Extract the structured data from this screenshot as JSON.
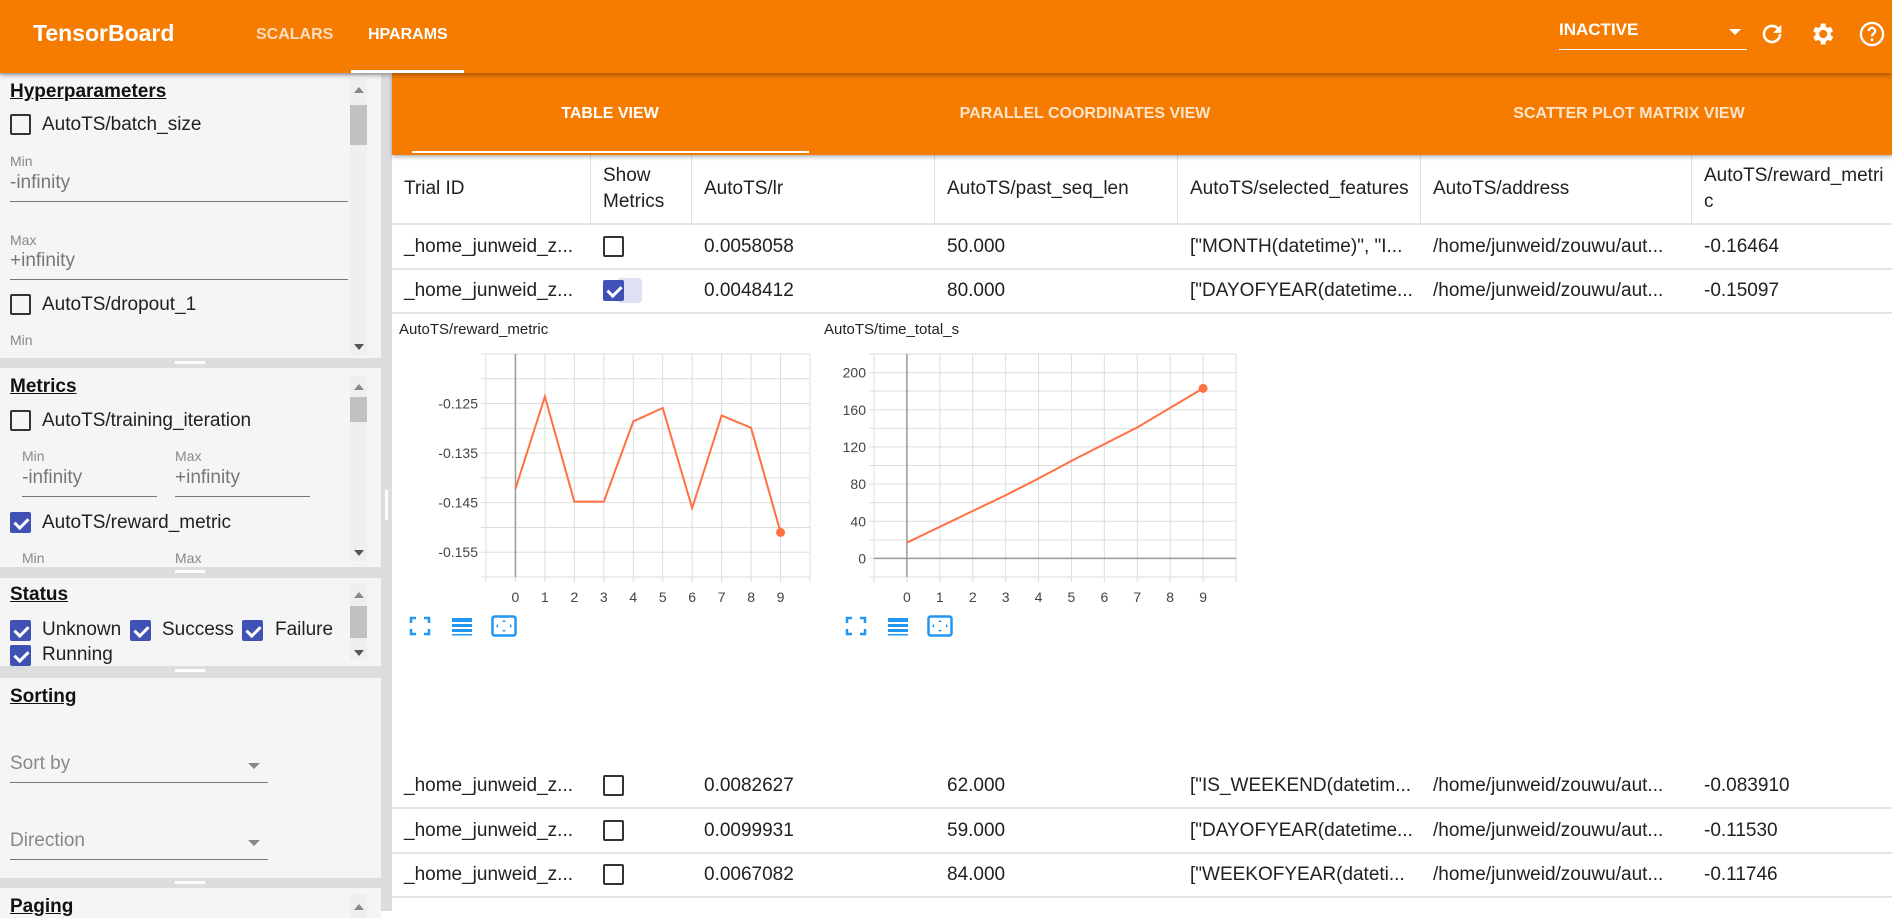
{
  "app": {
    "title": "TensorBoard",
    "nav": [
      "SCALARS",
      "HPARAMS"
    ],
    "active_nav": "HPARAMS"
  },
  "toolbar": {
    "run_select": "INACTIVE",
    "icons": [
      "refresh-icon",
      "gear-icon",
      "help-icon"
    ]
  },
  "accent_color": "#f57c00",
  "checkbox_color": "#3f51b5",
  "sidebar": {
    "hyperparameters": {
      "title": "Hyperparameters",
      "items": [
        {
          "label": "AutoTS/batch_size",
          "checked": false,
          "min_label": "Min",
          "min": "-infinity",
          "max_label": "Max",
          "max": "+infinity"
        },
        {
          "label": "AutoTS/dropout_1",
          "checked": false,
          "min_label": "Min"
        }
      ]
    },
    "metrics": {
      "title": "Metrics",
      "items": [
        {
          "label": "AutoTS/training_iteration",
          "checked": false,
          "min_label": "Min",
          "min": "-infinity",
          "max_label": "Max",
          "max": "+infinity"
        },
        {
          "label": "AutoTS/reward_metric",
          "checked": true,
          "min_label": "Min",
          "max_label": "Max"
        }
      ]
    },
    "status": {
      "title": "Status",
      "items": [
        {
          "label": "Unknown",
          "checked": true
        },
        {
          "label": "Success",
          "checked": true
        },
        {
          "label": "Failure",
          "checked": true
        },
        {
          "label": "Running",
          "checked": true
        }
      ]
    },
    "sorting": {
      "title": "Sorting",
      "sort_by": "Sort by",
      "direction": "Direction"
    },
    "paging": {
      "title": "Paging"
    }
  },
  "views": {
    "tabs": [
      "TABLE VIEW",
      "PARALLEL COORDINATES VIEW",
      "SCATTER PLOT MATRIX VIEW"
    ],
    "active": "TABLE VIEW"
  },
  "table": {
    "columns": [
      "Trial ID",
      "Show Metrics",
      "AutoTS/lr",
      "AutoTS/past_seq_len",
      "AutoTS/selected_features",
      "AutoTS/address",
      "AutoTS/reward_metric"
    ],
    "rows": [
      {
        "trial": "_home_junweid_z...",
        "show": false,
        "lr": "0.0058058",
        "past": "50.000",
        "features": "[\"MONTH(datetime)\", \"I...",
        "address": "/home/junweid/zouwu/aut...",
        "reward": "-0.16464"
      },
      {
        "trial": "_home_junweid_z...",
        "show": true,
        "lr": "0.0048412",
        "past": "80.000",
        "features": "[\"DAYOFYEAR(datetime...",
        "address": "/home/junweid/zouwu/aut...",
        "reward": "-0.15097"
      },
      {
        "trial": "_home_junweid_z...",
        "show": false,
        "lr": "0.0082627",
        "past": "62.000",
        "features": "[\"IS_WEEKEND(datetim...",
        "address": "/home/junweid/zouwu/aut...",
        "reward": "-0.083910"
      },
      {
        "trial": "_home_junweid_z...",
        "show": false,
        "lr": "0.0099931",
        "past": "59.000",
        "features": "[\"DAYOFYEAR(datetime...",
        "address": "/home/junweid/zouwu/aut...",
        "reward": "-0.11530"
      },
      {
        "trial": "_home_junweid_z...",
        "show": false,
        "lr": "0.0067082",
        "past": "84.000",
        "features": "[\"WEEKOFYEAR(dateti...",
        "address": "/home/junweid/zouwu/aut...",
        "reward": "-0.11746"
      }
    ]
  },
  "chart_data": [
    {
      "type": "line",
      "title": "AutoTS/reward_metric",
      "x": [
        0,
        1,
        2,
        3,
        4,
        5,
        6,
        7,
        8,
        9
      ],
      "y": [
        -0.1422,
        -0.1236,
        -0.1448,
        -0.1448,
        -0.1286,
        -0.1259,
        -0.1461,
        -0.1274,
        -0.1299,
        -0.151
      ],
      "xlim": [
        -1,
        10
      ],
      "ylim": [
        -0.16,
        -0.115
      ],
      "xticks": [
        0,
        1,
        2,
        3,
        4,
        5,
        6,
        7,
        8,
        9
      ],
      "yticks": [
        -0.125,
        -0.135,
        -0.145,
        -0.155
      ],
      "grid": true,
      "color": "#ff7043"
    },
    {
      "type": "line",
      "title": "AutoTS/time_total_s",
      "x": [
        0,
        1,
        2,
        3,
        4,
        5,
        6,
        7,
        8,
        9
      ],
      "y": [
        17,
        34,
        51,
        68,
        86,
        105,
        123,
        141,
        162,
        183
      ],
      "xlim": [
        -1,
        10
      ],
      "ylim": [
        -20,
        220
      ],
      "xticks": [
        0,
        1,
        2,
        3,
        4,
        5,
        6,
        7,
        8,
        9
      ],
      "yticks": [
        0,
        40,
        80,
        120,
        160,
        200
      ],
      "grid": true,
      "color": "#ff7043"
    }
  ],
  "chart_tools": [
    "fullscreen-icon",
    "legend-list-icon",
    "fit-domain-icon"
  ]
}
